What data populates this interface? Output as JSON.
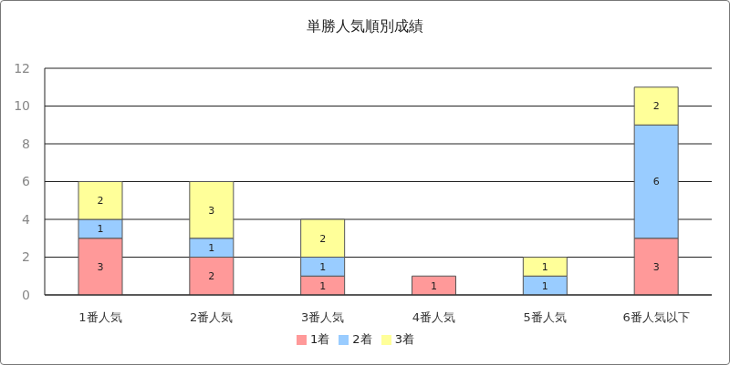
{
  "chart_data": {
    "type": "bar",
    "title": "単勝人気順別成績",
    "categories": [
      "1番人気",
      "2番人気",
      "3番人気",
      "4番人気",
      "5番人気",
      "6番人気以下"
    ],
    "series": [
      {
        "name": "1着",
        "color": "#ff9999",
        "values": [
          3,
          2,
          1,
          1,
          0,
          3
        ]
      },
      {
        "name": "2着",
        "color": "#99ccff",
        "values": [
          1,
          1,
          1,
          0,
          1,
          6
        ]
      },
      {
        "name": "3着",
        "color": "#ffff99",
        "values": [
          2,
          3,
          2,
          0,
          1,
          2
        ]
      }
    ],
    "ylim": [
      0,
      12
    ],
    "yticks": [
      0,
      2,
      4,
      6,
      8,
      10,
      12
    ],
    "grid": true,
    "stacked": true,
    "data_labels": true,
    "legend": "bottom"
  }
}
